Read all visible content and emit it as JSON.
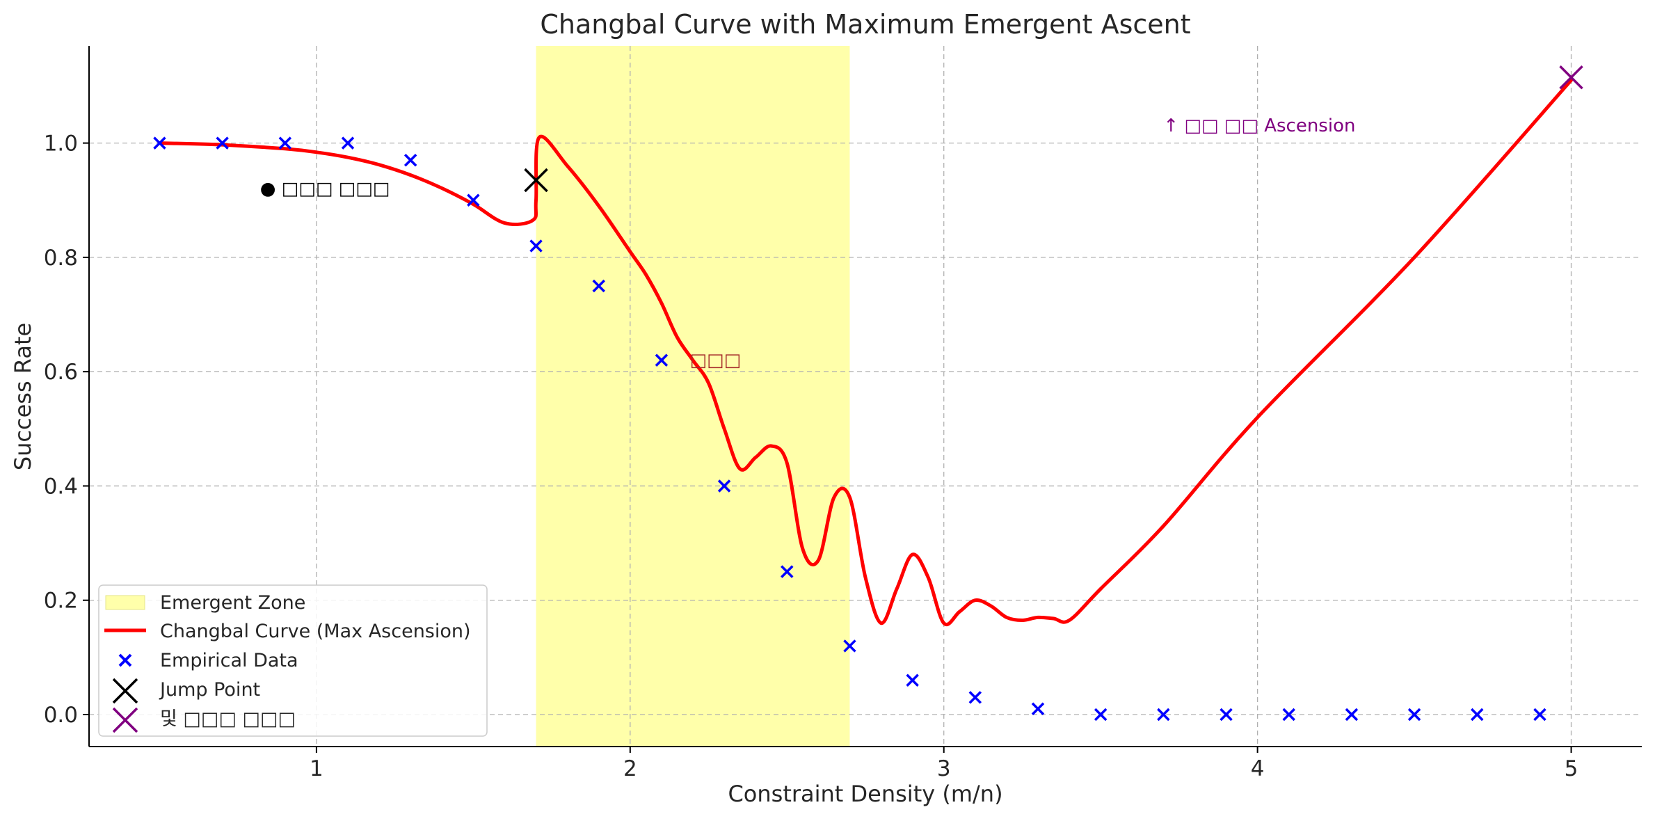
{
  "chart_data": {
    "type": "line",
    "title": "Changbal Curve with Maximum Emergent Ascent",
    "xlabel": "Constraint Density (m/n)",
    "ylabel": "Success Rate",
    "xlim": [
      0.275,
      5.225
    ],
    "ylim": [
      -0.056,
      1.17
    ],
    "xticks": [
      1,
      2,
      3,
      4,
      5
    ],
    "xtick_labels": [
      "1",
      "2",
      "3",
      "4",
      "5"
    ],
    "yticks": [
      0.0,
      0.2,
      0.4,
      0.6,
      0.8,
      1.0
    ],
    "ytick_labels": [
      "0.0",
      "0.2",
      "0.4",
      "0.6",
      "0.8",
      "1.0"
    ],
    "grid": true,
    "legend_position": "lower-left",
    "emergent_zone": {
      "label": "Emergent Zone",
      "x_range": [
        1.7,
        2.7
      ],
      "color": "#ffffaa"
    },
    "series": [
      {
        "name": "Changbal Curve (Max Ascension)",
        "type": "line",
        "color": "#ff0000",
        "x": [
          0.5,
          0.7,
          0.9,
          1.0,
          1.1,
          1.2,
          1.3,
          1.4,
          1.5,
          1.6,
          1.69,
          1.7,
          1.71,
          1.8,
          1.9,
          2.0,
          2.05,
          2.1,
          2.15,
          2.2,
          2.25,
          2.3,
          2.35,
          2.4,
          2.45,
          2.5,
          2.55,
          2.6,
          2.65,
          2.7,
          2.75,
          2.8,
          2.85,
          2.9,
          2.95,
          3.0,
          3.05,
          3.1,
          3.15,
          3.2,
          3.25,
          3.3,
          3.35,
          3.4,
          3.5,
          3.7,
          4.0,
          4.5,
          5.0
        ],
        "y": [
          1.0,
          0.997,
          0.99,
          0.984,
          0.975,
          0.962,
          0.944,
          0.921,
          0.893,
          0.86,
          0.865,
          0.9,
          1.01,
          0.96,
          0.89,
          0.81,
          0.77,
          0.72,
          0.66,
          0.62,
          0.58,
          0.5,
          0.43,
          0.45,
          0.47,
          0.44,
          0.29,
          0.27,
          0.38,
          0.38,
          0.24,
          0.16,
          0.22,
          0.28,
          0.24,
          0.16,
          0.18,
          0.2,
          0.19,
          0.17,
          0.165,
          0.17,
          0.168,
          0.165,
          0.22,
          0.33,
          0.52,
          0.8,
          1.11
        ]
      },
      {
        "name": "Empirical Data",
        "type": "scatter",
        "marker": "x",
        "color": "#0000ff",
        "x": [
          0.5,
          0.7,
          0.9,
          1.1,
          1.3,
          1.5,
          1.7,
          1.9,
          2.1,
          2.3,
          2.5,
          2.7,
          2.9,
          3.1,
          3.3,
          3.5,
          3.7,
          3.9,
          4.1,
          4.3,
          4.5,
          4.7,
          4.9
        ],
        "y": [
          1.0,
          1.0,
          1.0,
          1.0,
          0.97,
          0.9,
          0.82,
          0.75,
          0.62,
          0.4,
          0.25,
          0.12,
          0.06,
          0.03,
          0.01,
          0.0,
          0.0,
          0.0,
          0.0,
          0.0,
          0.0,
          0.0,
          0.0
        ]
      },
      {
        "name": "Jump Point",
        "type": "scatter",
        "marker": "X",
        "color": "#000000",
        "x": [
          1.7
        ],
        "y": [
          0.935
        ]
      },
      {
        "name": "및 □□□ □□□",
        "type": "scatter",
        "marker": "X",
        "color": "#800080",
        "x": [
          5.0
        ],
        "y": [
          1.115
        ]
      }
    ],
    "annotations": [
      {
        "text": "● □□□ □□□",
        "x": 0.82,
        "y": 0.91,
        "color": "#000000"
      },
      {
        "text": "□□□",
        "x": 2.19,
        "y": 0.61,
        "color": "#a52a2a"
      },
      {
        "text": "↑ □□ □□ Ascension",
        "x": 3.7,
        "y": 1.02,
        "color": "#800080"
      }
    ]
  }
}
